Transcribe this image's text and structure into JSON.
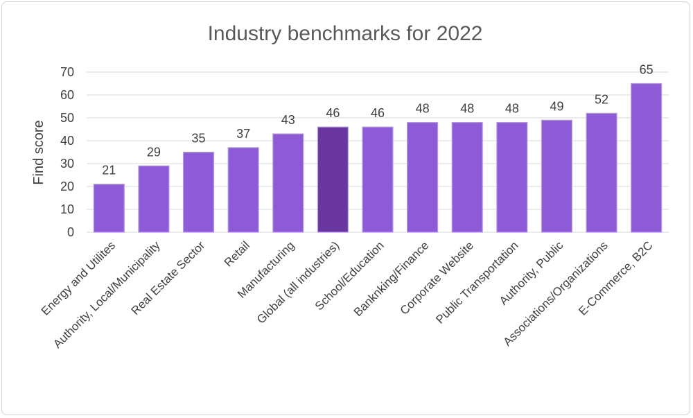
{
  "chart_data": {
    "type": "bar",
    "title": "Industry benchmarks for 2022",
    "xlabel": "",
    "ylabel": "Find score",
    "ylim": [
      0,
      70
    ],
    "yticks": [
      0,
      10,
      20,
      30,
      40,
      50,
      60,
      70
    ],
    "grid": true,
    "legend": "none",
    "categories": [
      "Energy and Utilites",
      "Authority, Local/Municipality",
      "Real Estate Sector",
      "Retail",
      "Manufacturing",
      "Global (all industries)",
      "School/Education",
      "Banknking/Finance",
      "Corporate Website",
      "Public Transportation",
      "Authority, Public",
      "Associations/Organizations",
      "E-Commerce, B2C"
    ],
    "values": [
      21,
      29,
      35,
      37,
      43,
      46,
      46,
      48,
      48,
      48,
      49,
      52,
      65
    ],
    "highlight_index": 5,
    "colors": {
      "bar": "#8E5BD6",
      "bar_edge": "#B79BE8",
      "highlight": "#6A36A0"
    }
  }
}
